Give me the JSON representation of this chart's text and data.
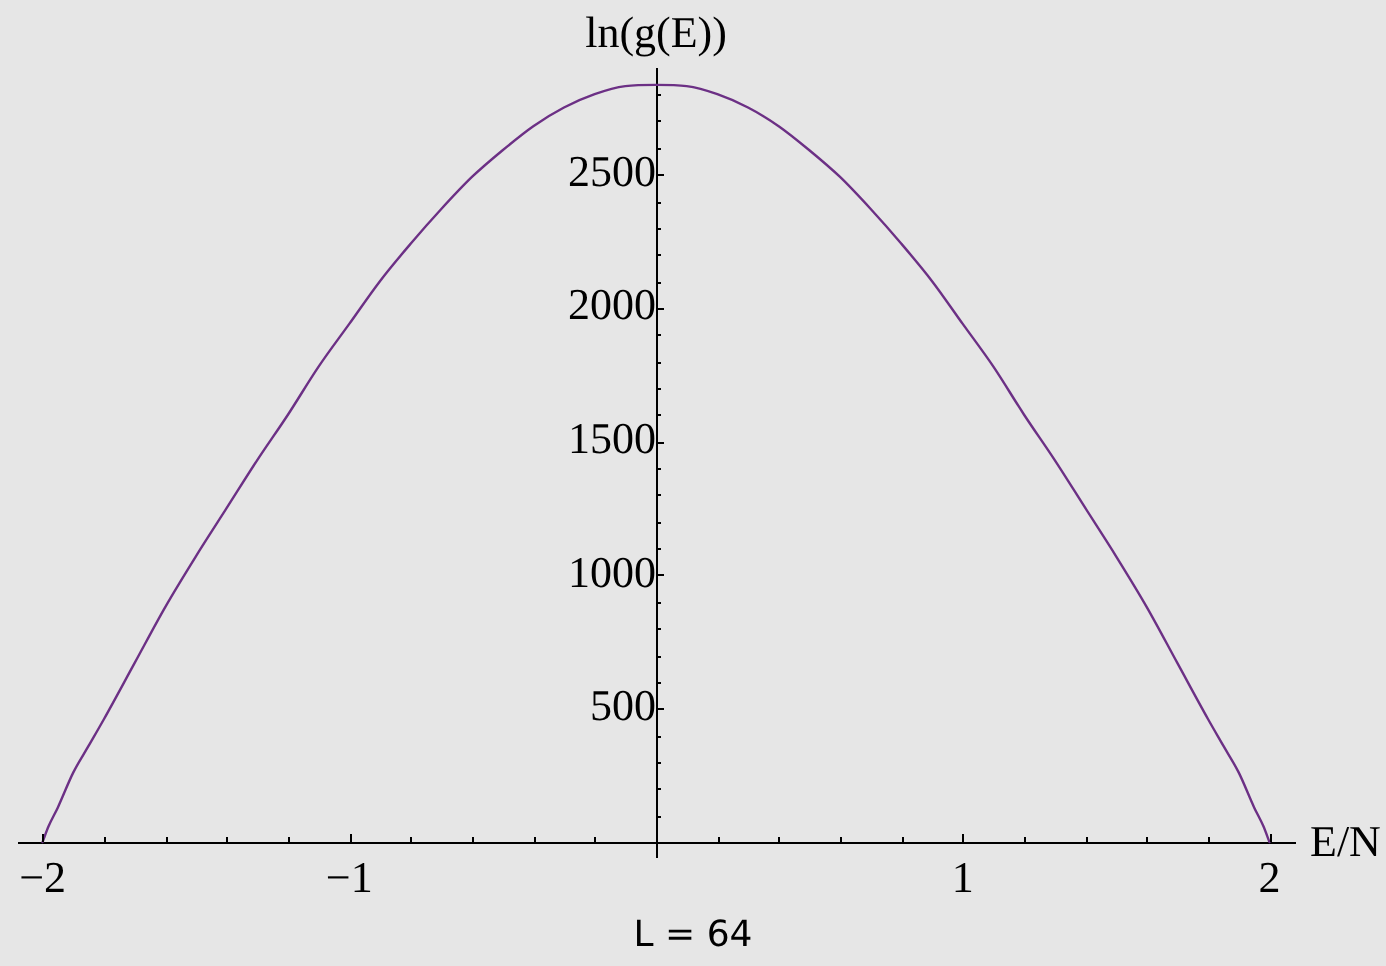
{
  "chart_data": {
    "type": "line",
    "title": "L = 64",
    "xlabel": "E/N",
    "ylabel": "ln(g(E))",
    "x": [
      -2,
      -1.98,
      -1.95,
      -1.9,
      -1.85,
      -1.8,
      -1.7,
      -1.6,
      -1.5,
      -1.4,
      -1.3,
      -1.2,
      -1.1,
      -1,
      -0.9,
      -0.8,
      -0.7,
      -0.6,
      -0.5,
      -0.4,
      -0.3,
      -0.2,
      -0.1,
      0,
      0.1,
      0.2,
      0.3,
      0.4,
      0.5,
      0.6,
      0.7,
      0.8,
      0.9,
      1,
      1.1,
      1.2,
      1.3,
      1.4,
      1.5,
      1.6,
      1.7,
      1.8,
      1.85,
      1.9,
      1.95,
      1.98,
      2
    ],
    "series": [
      {
        "color": "#6c3085",
        "values": [
          0,
          60,
          130,
          260,
          360,
          460,
          670,
          880,
          1070,
          1250,
          1430,
          1600,
          1780,
          1940,
          2100,
          2240,
          2370,
          2490,
          2590,
          2680,
          2750,
          2800,
          2830,
          2835,
          2830,
          2800,
          2750,
          2680,
          2590,
          2490,
          2370,
          2240,
          2100,
          1940,
          1780,
          1600,
          1430,
          1250,
          1070,
          880,
          670,
          460,
          360,
          260,
          130,
          60,
          0
        ]
      }
    ],
    "xlim": [
      -2.08,
      2.08
    ],
    "ylim": [
      -55,
      2895
    ],
    "xticks": [
      {
        "value": -2,
        "label": "−2"
      },
      {
        "value": -1.8,
        "label": null
      },
      {
        "value": -1.6,
        "label": null
      },
      {
        "value": -1.4,
        "label": null
      },
      {
        "value": -1.2,
        "label": null
      },
      {
        "value": -1,
        "label": "−1"
      },
      {
        "value": -0.8,
        "label": null
      },
      {
        "value": -0.6,
        "label": null
      },
      {
        "value": -0.4,
        "label": null
      },
      {
        "value": -0.2,
        "label": null
      },
      {
        "value": 0.2,
        "label": null
      },
      {
        "value": 0.4,
        "label": null
      },
      {
        "value": 0.6,
        "label": null
      },
      {
        "value": 0.8,
        "label": null
      },
      1,
      {
        "value": 1.2,
        "label": null
      },
      {
        "value": 1.4,
        "label": null
      },
      {
        "value": 1.6,
        "label": null
      },
      {
        "value": 1.8,
        "label": null
      },
      2
    ],
    "yticks": [
      {
        "value": 100,
        "label": null
      },
      {
        "value": 200,
        "label": null
      },
      {
        "value": 300,
        "label": null
      },
      {
        "value": 400,
        "label": null
      },
      500,
      {
        "value": 600,
        "label": null
      },
      {
        "value": 700,
        "label": null
      },
      {
        "value": 800,
        "label": null
      },
      {
        "value": 900,
        "label": null
      },
      1000,
      {
        "value": 1100,
        "label": null
      },
      {
        "value": 1200,
        "label": null
      },
      {
        "value": 1300,
        "label": null
      },
      {
        "value": 1400,
        "label": null
      },
      1500,
      {
        "value": 1600,
        "label": null
      },
      {
        "value": 1700,
        "label": null
      },
      {
        "value": 1800,
        "label": null
      },
      {
        "value": 1900,
        "label": null
      },
      2000,
      {
        "value": 2100,
        "label": null
      },
      {
        "value": 2200,
        "label": null
      },
      {
        "value": 2300,
        "label": null
      },
      {
        "value": 2400,
        "label": null
      },
      2500,
      {
        "value": 2600,
        "label": null
      },
      {
        "value": 2700,
        "label": null
      },
      {
        "value": 2800,
        "label": null
      }
    ]
  }
}
